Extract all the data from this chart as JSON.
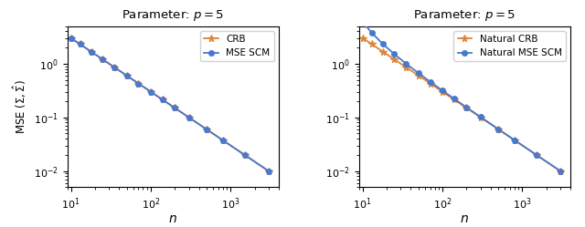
{
  "p": 5,
  "title": "Parameter: $p = 5$",
  "n_values": [
    10,
    13,
    18,
    25,
    35,
    50,
    70,
    100,
    140,
    200,
    300,
    500,
    800,
    1500,
    3000
  ],
  "color_blue": "#4878CF",
  "color_orange": "#E08535",
  "ylabel_left": "MSE $(\\Sigma, \\hat{\\Sigma})$",
  "xlabel": "$n$",
  "legend_left": [
    "MSE SCM",
    "CRB"
  ],
  "legend_right": [
    "Natural MSE SCM",
    "Natural CRB"
  ],
  "ylim": [
    0.005,
    5.0
  ],
  "xlim": [
    9,
    4000
  ]
}
